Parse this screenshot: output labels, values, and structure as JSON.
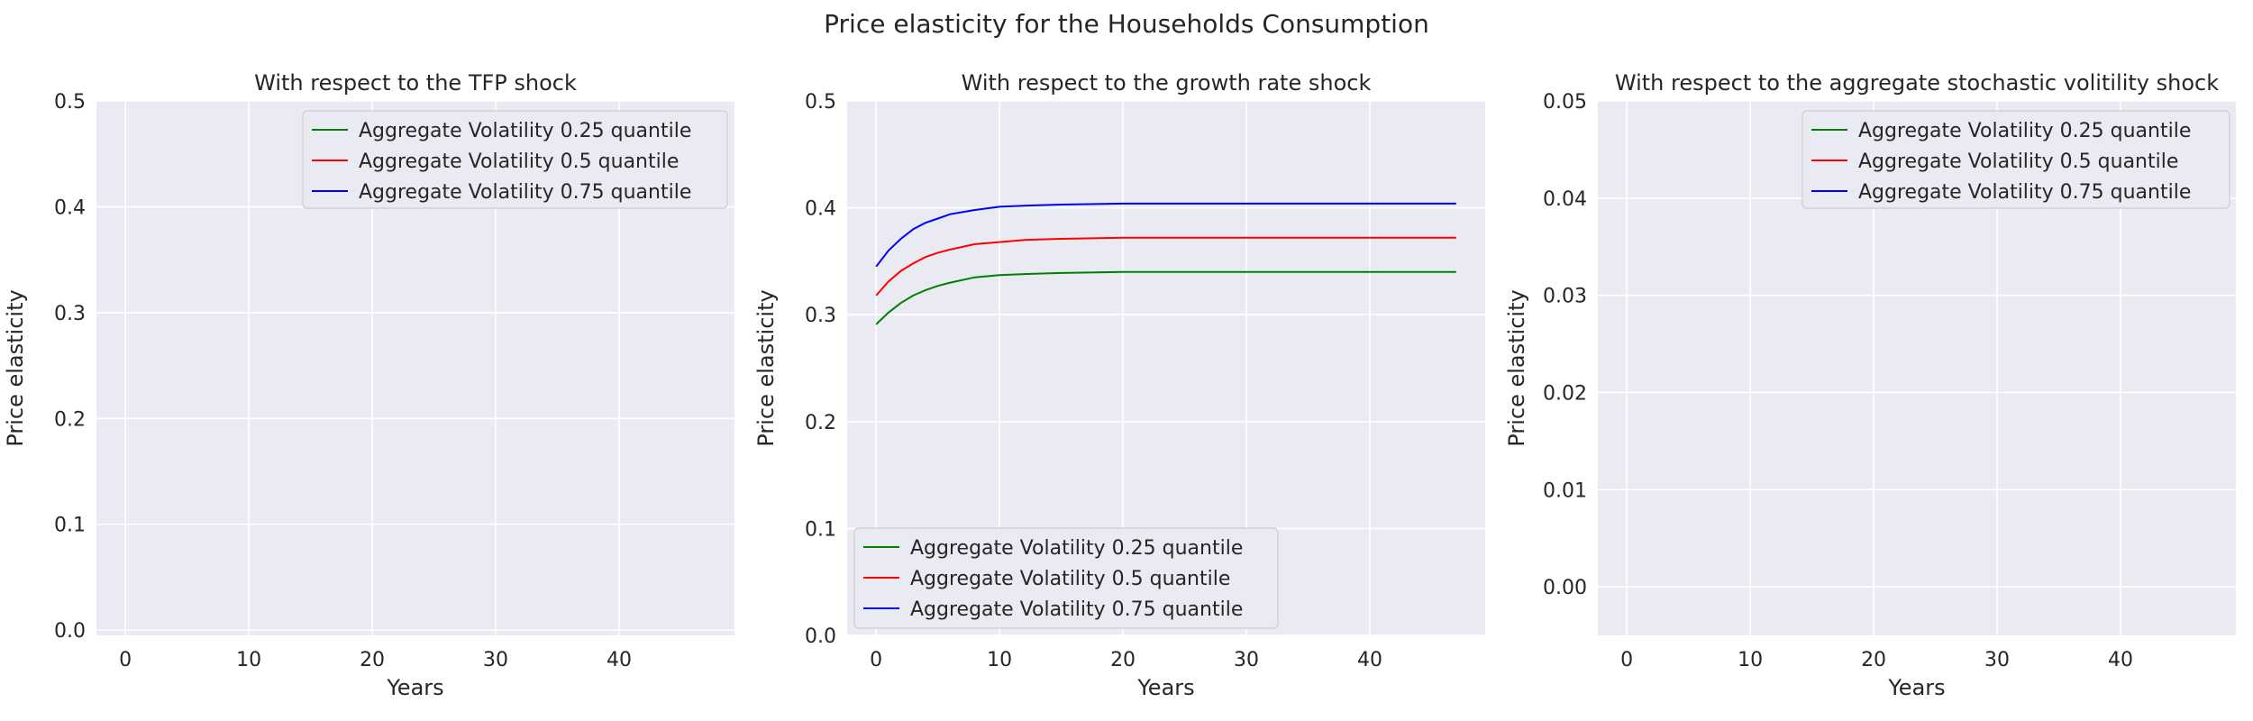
{
  "figure": {
    "suptitle": "Price elasticity for the Households Consumption"
  },
  "colors": {
    "background": "#eaeaf2",
    "grid": "#ffffff",
    "q25": "#008000",
    "q50": "#ff0000",
    "q75": "#0000ff"
  },
  "chart_data": [
    {
      "type": "line",
      "title": "With respect to the TFP shock",
      "xlabel": "Years",
      "ylabel": "Price elasticity",
      "xlim": [
        -2.35,
        49.35
      ],
      "ylim": [
        -0.005,
        0.5
      ],
      "xticks": [
        0,
        10,
        20,
        30,
        40
      ],
      "yticks": [
        0.0,
        0.1,
        0.2,
        0.3,
        0.4,
        0.5
      ],
      "ytick_labels": [
        "0.0",
        "0.1",
        "0.2",
        "0.3",
        "0.4",
        "0.5"
      ],
      "grid": true,
      "legend_position": "top-right",
      "series": [
        {
          "name": "Aggregate Volatility 0.25 quantile",
          "color": "#008000",
          "x": [],
          "y": []
        },
        {
          "name": "Aggregate Volatility 0.5 quantile",
          "color": "#ff0000",
          "x": [],
          "y": []
        },
        {
          "name": "Aggregate Volatility 0.75 quantile",
          "color": "#0000ff",
          "x": [],
          "y": []
        }
      ]
    },
    {
      "type": "line",
      "title": "With respect to the growth rate shock",
      "xlabel": "Years",
      "ylabel": "Price elasticity",
      "xlim": [
        -2.35,
        49.35
      ],
      "ylim": [
        0.0,
        0.5
      ],
      "xticks": [
        0,
        10,
        20,
        30,
        40
      ],
      "yticks": [
        0.0,
        0.1,
        0.2,
        0.3,
        0.4,
        0.5
      ],
      "ytick_labels": [
        "0.0",
        "0.1",
        "0.2",
        "0.3",
        "0.4",
        "0.5"
      ],
      "grid": true,
      "legend_position": "bottom-left",
      "series": [
        {
          "name": "Aggregate Volatility 0.25 quantile",
          "color": "#008000",
          "x": [
            0,
            1,
            2,
            3,
            4,
            5,
            6,
            8,
            10,
            12,
            15,
            20,
            25,
            30,
            35,
            40,
            47
          ],
          "y": [
            0.291,
            0.302,
            0.311,
            0.318,
            0.323,
            0.327,
            0.33,
            0.335,
            0.337,
            0.338,
            0.339,
            0.34,
            0.34,
            0.34,
            0.34,
            0.34,
            0.34
          ]
        },
        {
          "name": "Aggregate Volatility 0.5 quantile",
          "color": "#ff0000",
          "x": [
            0,
            1,
            2,
            3,
            4,
            5,
            6,
            8,
            10,
            12,
            15,
            20,
            25,
            30,
            35,
            40,
            47
          ],
          "y": [
            0.318,
            0.331,
            0.341,
            0.348,
            0.354,
            0.358,
            0.361,
            0.366,
            0.368,
            0.37,
            0.371,
            0.372,
            0.372,
            0.372,
            0.372,
            0.372,
            0.372
          ]
        },
        {
          "name": "Aggregate Volatility 0.75 quantile",
          "color": "#0000ff",
          "x": [
            0,
            1,
            2,
            3,
            4,
            5,
            6,
            8,
            10,
            12,
            15,
            20,
            25,
            30,
            35,
            40,
            47
          ],
          "y": [
            0.345,
            0.36,
            0.371,
            0.38,
            0.386,
            0.39,
            0.394,
            0.398,
            0.401,
            0.402,
            0.403,
            0.404,
            0.404,
            0.404,
            0.404,
            0.404,
            0.404
          ]
        }
      ]
    },
    {
      "type": "line",
      "title": "With respect to the aggregate stochastic volitility shock",
      "xlabel": "Years",
      "ylabel": "Price elasticity",
      "xlim": [
        -2.35,
        49.35
      ],
      "ylim": [
        -0.005,
        0.05
      ],
      "xticks": [
        0,
        10,
        20,
        30,
        40
      ],
      "yticks": [
        0.0,
        0.01,
        0.02,
        0.03,
        0.04,
        0.05
      ],
      "ytick_labels": [
        "0.00",
        "0.01",
        "0.02",
        "0.03",
        "0.04",
        "0.05"
      ],
      "grid": true,
      "legend_position": "top-right",
      "series": [
        {
          "name": "Aggregate Volatility 0.25 quantile",
          "color": "#008000",
          "x": [],
          "y": []
        },
        {
          "name": "Aggregate Volatility 0.5 quantile",
          "color": "#ff0000",
          "x": [],
          "y": []
        },
        {
          "name": "Aggregate Volatility 0.75 quantile",
          "color": "#0000ff",
          "x": [],
          "y": []
        }
      ]
    }
  ]
}
